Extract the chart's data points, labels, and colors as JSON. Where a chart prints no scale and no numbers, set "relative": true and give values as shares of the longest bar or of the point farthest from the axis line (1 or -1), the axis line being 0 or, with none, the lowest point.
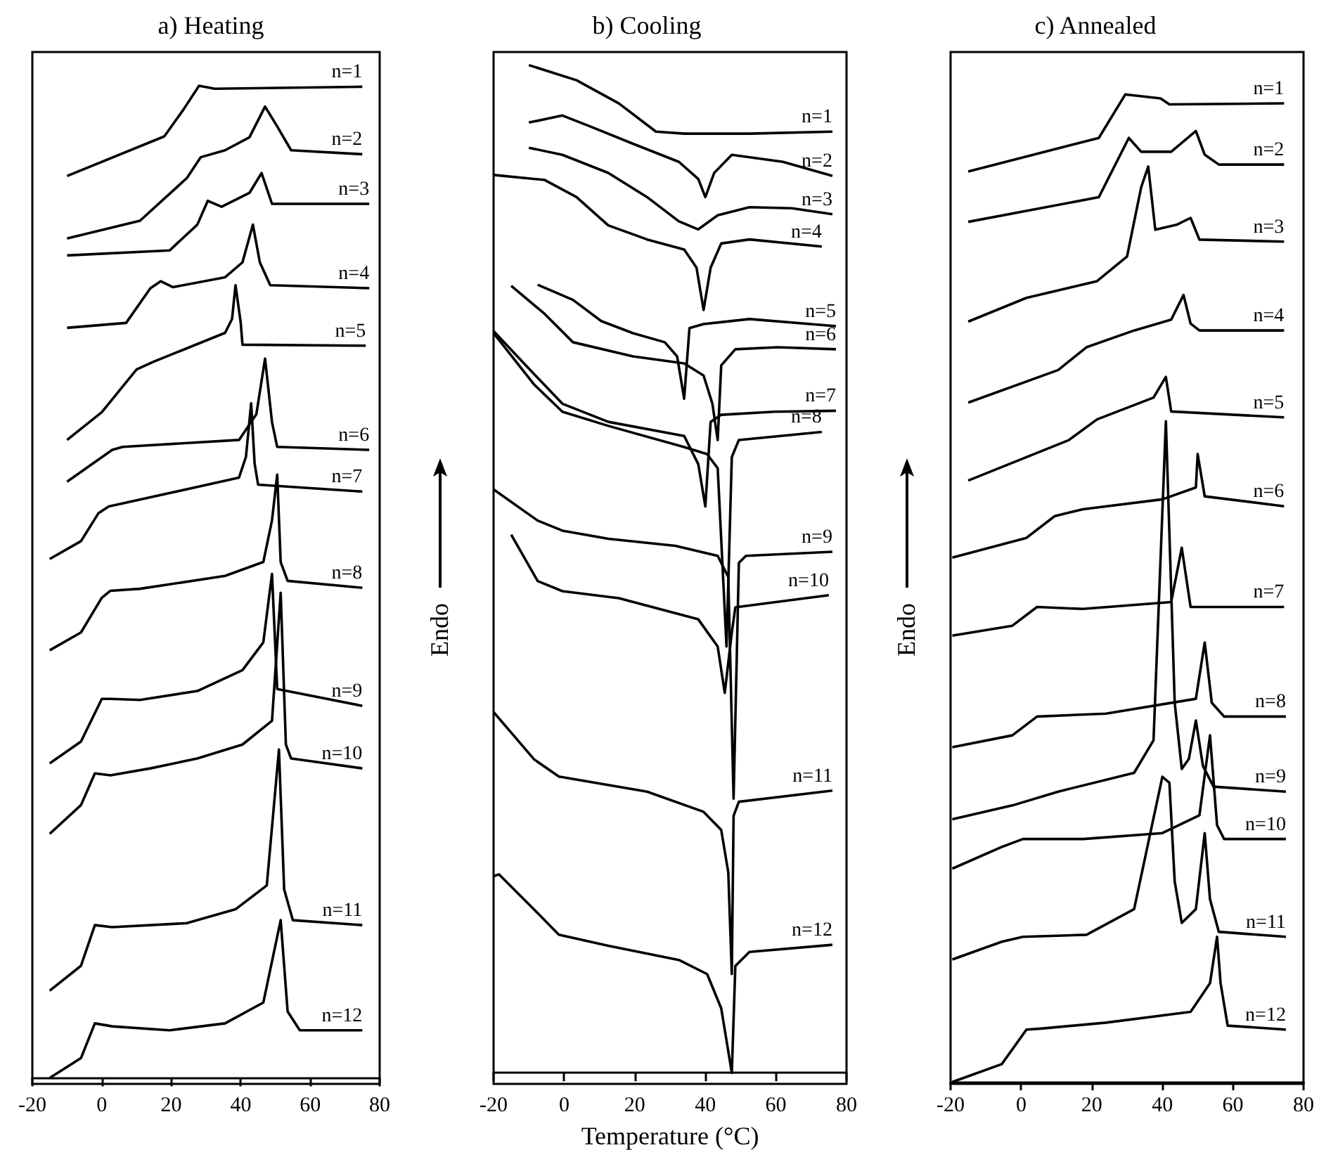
{
  "chart_data": [
    {
      "type": "line",
      "title": "a) Heating",
      "relative": true,
      "xlim": [
        -20,
        80
      ],
      "xticks": [
        -20,
        0,
        20,
        40,
        60,
        80
      ],
      "series": [
        {
          "name": "n=1",
          "color": "#000000",
          "x": [
            -10,
            18,
            23.5,
            28,
            32.5,
            75
          ],
          "values": [
            0.909,
            0.949,
            0.976,
            1.0,
            0.997,
            0.999
          ]
        },
        {
          "name": "n=2",
          "color": "#000000",
          "x": [
            -10,
            11,
            24.5,
            28.5,
            35.5,
            42.5,
            47,
            50.5,
            54.5,
            75
          ],
          "values": [
            0.846,
            0.864,
            0.907,
            0.928,
            0.935,
            0.948,
            0.979,
            0.959,
            0.935,
            0.931
          ]
        },
        {
          "name": "n=3",
          "color": "#000000",
          "x": [
            -10,
            19.5,
            27.5,
            30.5,
            34.5,
            42.5,
            46,
            49,
            77
          ],
          "values": [
            0.829,
            0.834,
            0.86,
            0.884,
            0.878,
            0.892,
            0.912,
            0.881,
            0.881
          ]
        },
        {
          "name": "n=4",
          "color": "#000000",
          "x": [
            -10,
            7,
            14,
            17,
            20.5,
            35.5,
            40.5,
            43.5,
            45.5,
            48.5,
            77
          ],
          "values": [
            0.756,
            0.761,
            0.796,
            0.803,
            0.797,
            0.807,
            0.822,
            0.86,
            0.822,
            0.799,
            0.796
          ]
        },
        {
          "name": "n=5",
          "color": "#000000",
          "x": [
            -10,
            0,
            10,
            15,
            35.5,
            37.5,
            38.5,
            40,
            40.5,
            76
          ],
          "values": [
            0.643,
            0.671,
            0.714,
            0.722,
            0.751,
            0.765,
            0.799,
            0.761,
            0.739,
            0.738
          ]
        },
        {
          "name": "n=6",
          "color": "#000000",
          "x": [
            -10,
            3,
            6,
            39.5,
            44.5,
            47,
            49,
            50.5,
            77
          ],
          "values": [
            0.601,
            0.633,
            0.636,
            0.643,
            0.669,
            0.725,
            0.661,
            0.636,
            0.633
          ]
        },
        {
          "name": "n=7",
          "color": "#000000",
          "x": [
            -15,
            -6,
            -1,
            2,
            39.5,
            41.5,
            43,
            44,
            45,
            75
          ],
          "values": [
            0.523,
            0.541,
            0.569,
            0.576,
            0.605,
            0.626,
            0.68,
            0.619,
            0.598,
            0.591
          ]
        },
        {
          "name": "n=8",
          "color": "#000000",
          "x": [
            -15,
            -6,
            0,
            2.5,
            11,
            35.5,
            46.5,
            49,
            50.5,
            51.5,
            53.5,
            75
          ],
          "values": [
            0.431,
            0.449,
            0.484,
            0.491,
            0.493,
            0.506,
            0.52,
            0.562,
            0.608,
            0.52,
            0.501,
            0.494
          ]
        },
        {
          "name": "n=9",
          "color": "#000000",
          "x": [
            -15,
            -6,
            0,
            2.5,
            11,
            27.5,
            40.5,
            46.5,
            49,
            50.5,
            75
          ],
          "values": [
            0.317,
            0.339,
            0.382,
            0.382,
            0.381,
            0.39,
            0.411,
            0.439,
            0.508,
            0.392,
            0.375
          ]
        },
        {
          "name": "n=10",
          "color": "#000000",
          "x": [
            -15,
            -6,
            -2,
            2.5,
            14,
            27.5,
            40.5,
            49,
            51.5,
            53,
            54.5,
            75
          ],
          "values": [
            0.246,
            0.275,
            0.307,
            0.305,
            0.312,
            0.322,
            0.336,
            0.36,
            0.489,
            0.336,
            0.322,
            0.312
          ]
        },
        {
          "name": "n=11",
          "color": "#000000",
          "x": [
            -15,
            -6,
            -2,
            3,
            24.5,
            38.5,
            47.5,
            51,
            52.5,
            55,
            75
          ],
          "values": [
            0.088,
            0.113,
            0.154,
            0.152,
            0.156,
            0.17,
            0.194,
            0.331,
            0.19,
            0.159,
            0.154
          ]
        },
        {
          "name": "n=12",
          "color": "#000000",
          "x": [
            -15,
            -6,
            -2,
            3,
            19.5,
            35.5,
            46.5,
            51.5,
            53.5,
            57,
            75
          ],
          "values": [
            0,
            0.02,
            0.055,
            0.052,
            0.048,
            0.055,
            0.076,
            0.159,
            0.067,
            0.048,
            0.048
          ]
        }
      ]
    },
    {
      "type": "line",
      "title": "b) Cooling",
      "xlabel": "Temperature (°C)",
      "ylabel": "Endo",
      "relative": true,
      "xlim": [
        -20,
        80
      ],
      "xticks": [
        -20,
        0,
        20,
        40,
        60,
        80
      ],
      "series": [
        {
          "name": "n=1",
          "color": "#000000",
          "x": [
            -10,
            3.5,
            15.5,
            26,
            34,
            52.5,
            76
          ],
          "values": [
            1.0,
            0.985,
            0.962,
            0.934,
            0.932,
            0.932,
            0.934
          ]
        },
        {
          "name": "n=2",
          "color": "#000000",
          "x": [
            -10,
            -0.5,
            7.5,
            19.5,
            32.5,
            38,
            40,
            42.5,
            47.5,
            62,
            76
          ],
          "values": [
            0.943,
            0.95,
            0.939,
            0.922,
            0.904,
            0.887,
            0.869,
            0.893,
            0.911,
            0.904,
            0.89
          ]
        },
        {
          "name": "n=3",
          "color": "#000000",
          "x": [
            -10,
            -0.5,
            12.5,
            23.5,
            32.5,
            38,
            43.5,
            52.5,
            64.5,
            76
          ],
          "values": [
            0.918,
            0.911,
            0.893,
            0.869,
            0.845,
            0.837,
            0.851,
            0.859,
            0.858,
            0.852
          ]
        },
        {
          "name": "n=4",
          "color": "#000000",
          "x": [
            -20,
            -5.5,
            3.5,
            12.5,
            23.5,
            34,
            37.5,
            39.5,
            41.5,
            44.5,
            52.5,
            73
          ],
          "values": [
            0.891,
            0.886,
            0.869,
            0.841,
            0.827,
            0.817,
            0.799,
            0.757,
            0.799,
            0.823,
            0.827,
            0.82
          ]
        },
        {
          "name": "n=5",
          "color": "#000000",
          "x": [
            -7.5,
            2.5,
            10.5,
            19.5,
            28.5,
            32,
            34,
            35.5,
            39.5,
            52.5,
            77
          ],
          "values": [
            0.782,
            0.767,
            0.746,
            0.734,
            0.725,
            0.711,
            0.669,
            0.739,
            0.743,
            0.748,
            0.741
          ]
        },
        {
          "name": "n=6",
          "color": "#000000",
          "x": [
            -15,
            -5.5,
            2.5,
            19.5,
            34,
            39.5,
            42,
            43.5,
            44.5,
            48.5,
            60.5,
            77
          ],
          "values": [
            0.781,
            0.753,
            0.725,
            0.711,
            0.704,
            0.692,
            0.664,
            0.628,
            0.702,
            0.718,
            0.72,
            0.718
          ]
        },
        {
          "name": "n=7",
          "color": "#000000",
          "x": [
            -20,
            -9.5,
            -0.5,
            12.5,
            34,
            38,
            40,
            41.5,
            44.5,
            59.5,
            77
          ],
          "values": [
            0.736,
            0.697,
            0.664,
            0.646,
            0.632,
            0.604,
            0.562,
            0.646,
            0.653,
            0.656,
            0.657
          ]
        },
        {
          "name": "n=8",
          "color": "#000000",
          "x": [
            -20,
            -8.5,
            -0.5,
            12.5,
            34,
            40.5,
            43.5,
            46,
            47.5,
            49.5,
            73
          ],
          "values": [
            0.734,
            0.683,
            0.656,
            0.642,
            0.621,
            0.614,
            0.6,
            0.423,
            0.611,
            0.628,
            0.636
          ]
        },
        {
          "name": "n=9",
          "color": "#000000",
          "x": [
            -20,
            -7.5,
            -0.5,
            12.5,
            31.5,
            43.5,
            46.5,
            48,
            49.5,
            51.5,
            76
          ],
          "values": [
            0.579,
            0.548,
            0.538,
            0.53,
            0.523,
            0.513,
            0.492,
            0.272,
            0.506,
            0.513,
            0.517
          ]
        },
        {
          "name": "n=10",
          "color": "#000000",
          "x": [
            -15,
            -7.5,
            -0.5,
            15.5,
            38,
            43.5,
            45.5,
            47.5,
            48.5,
            75
          ],
          "values": [
            0.534,
            0.488,
            0.478,
            0.471,
            0.45,
            0.423,
            0.377,
            0.437,
            0.462,
            0.474
          ]
        },
        {
          "name": "n=11",
          "color": "#000000",
          "x": [
            -20,
            -8.5,
            -1.5,
            23.5,
            39.5,
            44.5,
            46.5,
            47.5,
            48,
            49.5,
            76
          ],
          "values": [
            0.358,
            0.311,
            0.294,
            0.279,
            0.259,
            0.241,
            0.199,
            0.098,
            0.255,
            0.269,
            0.28
          ]
        },
        {
          "name": "n=12",
          "color": "#000000",
          "x": [
            -20,
            -18.5,
            -8.5,
            -1.5,
            12.5,
            32.5,
            40.5,
            44.5,
            47.5,
            48.5,
            52.5,
            76
          ],
          "values": [
            0.195,
            0.197,
            0.162,
            0.137,
            0.126,
            0.112,
            0.098,
            0.064,
            0,
            0.106,
            0.12,
            0.127
          ]
        }
      ]
    },
    {
      "type": "line",
      "title": "c) Annealed",
      "ylabel": "Endo",
      "relative": true,
      "xlim": [
        -20,
        80
      ],
      "xticks": [
        -20,
        0,
        20,
        40,
        60,
        80
      ],
      "series": [
        {
          "name": "n=1",
          "color": "#000000",
          "x": [
            -15,
            22,
            29.5,
            32,
            39.5,
            42,
            74.5
          ],
          "values": [
            0.922,
            0.956,
            1.0,
            0.999,
            0.996,
            0.99,
            0.991
          ]
        },
        {
          "name": "n=2",
          "color": "#000000",
          "x": [
            -15,
            22,
            30.5,
            34,
            42.5,
            49.5,
            52,
            56,
            74.5
          ],
          "values": [
            0.871,
            0.896,
            0.956,
            0.942,
            0.942,
            0.963,
            0.939,
            0.929,
            0.929
          ]
        },
        {
          "name": "n=3",
          "color": "#000000",
          "x": [
            -15,
            1.5,
            21.5,
            30,
            34,
            36,
            38,
            44,
            48,
            50.5,
            74.5
          ],
          "values": [
            0.77,
            0.794,
            0.811,
            0.836,
            0.906,
            0.927,
            0.863,
            0.868,
            0.875,
            0.853,
            0.851
          ]
        },
        {
          "name": "n=4",
          "color": "#000000",
          "x": [
            -15,
            10.5,
            18.5,
            32,
            42.5,
            46,
            48,
            50.5,
            74.5
          ],
          "values": [
            0.688,
            0.721,
            0.744,
            0.761,
            0.772,
            0.797,
            0.768,
            0.761,
            0.761
          ]
        },
        {
          "name": "n=5",
          "color": "#000000",
          "x": [
            -15,
            13.5,
            21.5,
            37.5,
            41,
            42.5,
            74.5
          ],
          "values": [
            0.609,
            0.65,
            0.671,
            0.693,
            0.714,
            0.679,
            0.673
          ]
        },
        {
          "name": "n=6",
          "color": "#000000",
          "x": [
            -19.5,
            1.5,
            9.5,
            17.5,
            40,
            49.5,
            50,
            52,
            74.5
          ],
          "values": [
            0.531,
            0.551,
            0.573,
            0.58,
            0.59,
            0.602,
            0.636,
            0.593,
            0.583
          ]
        },
        {
          "name": "n=7",
          "color": "#000000",
          "x": [
            -19.5,
            -2.5,
            4.5,
            17.5,
            42.5,
            45.5,
            48,
            74.5
          ],
          "values": [
            0.452,
            0.462,
            0.481,
            0.479,
            0.486,
            0.541,
            0.481,
            0.481
          ]
        },
        {
          "name": "n=8",
          "color": "#000000",
          "x": [
            -19.5,
            -2.5,
            4.5,
            24,
            49.5,
            52,
            54,
            57.5,
            75
          ],
          "values": [
            0.339,
            0.351,
            0.37,
            0.373,
            0.388,
            0.445,
            0.384,
            0.37,
            0.37
          ]
        },
        {
          "name": "n=9",
          "color": "#000000",
          "x": [
            -19.5,
            -2.5,
            10.5,
            32,
            37.5,
            41,
            43.5,
            45.5,
            47.5,
            49.5,
            51.5,
            54.5,
            75
          ],
          "values": [
            0.266,
            0.28,
            0.294,
            0.313,
            0.346,
            0.669,
            0.384,
            0.317,
            0.327,
            0.366,
            0.32,
            0.299,
            0.294
          ]
        },
        {
          "name": "n=10",
          "color": "#000000",
          "x": [
            -19.5,
            -5.5,
            0.5,
            17.5,
            40,
            50.5,
            53.5,
            55.5,
            57.5,
            75
          ],
          "values": [
            0.216,
            0.238,
            0.246,
            0.246,
            0.252,
            0.27,
            0.351,
            0.26,
            0.246,
            0.246
          ]
        },
        {
          "name": "n=11",
          "color": "#000000",
          "x": [
            -19.5,
            -5.5,
            0.5,
            18.5,
            32,
            36,
            40,
            42,
            43.5,
            45.5,
            49.5,
            52,
            53.5,
            56,
            75
          ],
          "values": [
            0.124,
            0.142,
            0.147,
            0.149,
            0.175,
            0.242,
            0.309,
            0.303,
            0.203,
            0.161,
            0.175,
            0.252,
            0.185,
            0.152,
            0.147
          ]
        },
        {
          "name": "n=12",
          "color": "#000000",
          "x": [
            -19.5,
            -5.5,
            1.5,
            5.5,
            24,
            48,
            53.5,
            55.5,
            56.5,
            58.5,
            75
          ],
          "values": [
            0,
            0.018,
            0.053,
            0.054,
            0.06,
            0.071,
            0.1,
            0.147,
            0.1,
            0.057,
            0.053
          ]
        }
      ]
    }
  ]
}
